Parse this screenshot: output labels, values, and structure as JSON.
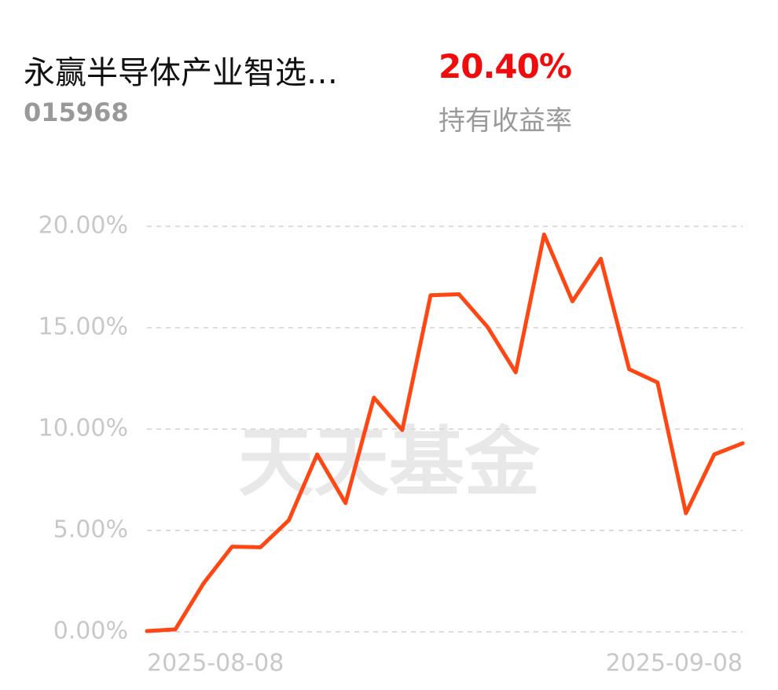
{
  "header": {
    "fund_name": "永赢半导体产业智选…",
    "fund_code": "015968",
    "return_value": "20.40%",
    "return_label": "持有收益率"
  },
  "chart_data": {
    "type": "line",
    "watermark": "天天基金",
    "categories": [
      "2025-08-08",
      null,
      null,
      null,
      null,
      null,
      null,
      null,
      null,
      null,
      null,
      null,
      null,
      null,
      null,
      null,
      null,
      null,
      null,
      null,
      null,
      "2025-09-08"
    ],
    "series": [
      {
        "color": "#ff4714",
        "values": [
          0.04,
          0.12,
          2.4,
          4.2,
          4.17,
          5.5,
          8.75,
          6.35,
          11.55,
          9.95,
          16.6,
          16.65,
          15.05,
          12.8,
          19.6,
          16.3,
          18.4,
          12.95,
          12.3,
          5.85,
          8.75,
          9.3
        ]
      }
    ],
    "ylim": [
      0,
      20
    ],
    "yticks": [
      {
        "value": 0,
        "label": "0.00%"
      },
      {
        "value": 5,
        "label": "5.00%"
      },
      {
        "value": 10,
        "label": "10.00%"
      },
      {
        "value": 15,
        "label": "15.00%"
      },
      {
        "value": 20,
        "label": "20.00%"
      }
    ],
    "grid": true
  }
}
